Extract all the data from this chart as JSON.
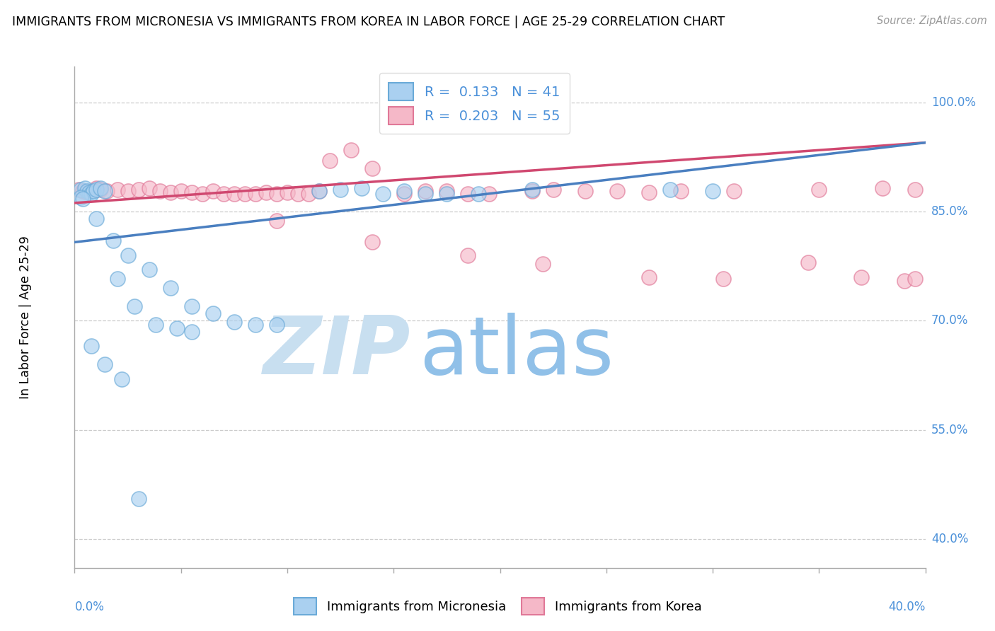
{
  "title": "IMMIGRANTS FROM MICRONESIA VS IMMIGRANTS FROM KOREA IN LABOR FORCE | AGE 25-29 CORRELATION CHART",
  "source": "Source: ZipAtlas.com",
  "ylabel": "In Labor Force | Age 25-29",
  "ytick_labels": [
    "40.0%",
    "55.0%",
    "70.0%",
    "85.0%",
    "100.0%"
  ],
  "ytick_values": [
    0.4,
    0.55,
    0.7,
    0.85,
    1.0
  ],
  "xtick_left": "0.0%",
  "xtick_right": "40.0%",
  "xmin": 0.0,
  "xmax": 0.4,
  "ymin": 0.36,
  "ymax": 1.05,
  "legend_blue_r": "0.133",
  "legend_blue_n": "41",
  "legend_pink_r": "0.203",
  "legend_pink_n": "55",
  "blue_face": "#AAD0F0",
  "blue_edge": "#6AAAD8",
  "pink_face": "#F5B8C8",
  "pink_edge": "#E07898",
  "blue_line": "#4A7FC0",
  "pink_line": "#D04870",
  "watermark_zip": "ZIP",
  "watermark_atlas": "atlas",
  "watermark_color_zip": "#C8DFF0",
  "watermark_color_atlas": "#90C0E8",
  "blue_x": [
    0.003,
    0.005,
    0.006,
    0.007,
    0.008,
    0.009,
    0.01,
    0.012,
    0.014,
    0.003,
    0.004,
    0.115,
    0.125,
    0.135,
    0.145,
    0.155,
    0.165,
    0.175,
    0.19,
    0.01,
    0.018,
    0.025,
    0.035,
    0.045,
    0.055,
    0.065,
    0.075,
    0.085,
    0.095,
    0.02,
    0.028,
    0.038,
    0.048,
    0.055,
    0.215,
    0.28,
    0.3,
    0.008,
    0.014,
    0.022,
    0.03
  ],
  "blue_y": [
    0.88,
    0.882,
    0.878,
    0.876,
    0.875,
    0.878,
    0.88,
    0.882,
    0.878,
    0.87,
    0.868,
    0.878,
    0.88,
    0.882,
    0.875,
    0.878,
    0.875,
    0.875,
    0.875,
    0.84,
    0.81,
    0.79,
    0.77,
    0.745,
    0.72,
    0.71,
    0.698,
    0.695,
    0.695,
    0.758,
    0.72,
    0.695,
    0.69,
    0.685,
    0.88,
    0.88,
    0.878,
    0.665,
    0.64,
    0.62,
    0.455
  ],
  "pink_x": [
    0.002,
    0.004,
    0.006,
    0.008,
    0.01,
    0.012,
    0.015,
    0.02,
    0.025,
    0.03,
    0.035,
    0.04,
    0.045,
    0.05,
    0.055,
    0.06,
    0.065,
    0.07,
    0.075,
    0.08,
    0.085,
    0.09,
    0.095,
    0.1,
    0.105,
    0.11,
    0.115,
    0.12,
    0.13,
    0.14,
    0.155,
    0.165,
    0.175,
    0.185,
    0.195,
    0.215,
    0.225,
    0.24,
    0.255,
    0.27,
    0.285,
    0.31,
    0.35,
    0.38,
    0.395,
    0.095,
    0.14,
    0.185,
    0.22,
    0.27,
    0.305,
    0.345,
    0.37,
    0.39,
    0.395
  ],
  "pink_y": [
    0.88,
    0.878,
    0.876,
    0.878,
    0.882,
    0.88,
    0.878,
    0.88,
    0.878,
    0.88,
    0.882,
    0.878,
    0.876,
    0.878,
    0.876,
    0.875,
    0.878,
    0.875,
    0.875,
    0.875,
    0.875,
    0.876,
    0.875,
    0.876,
    0.875,
    0.875,
    0.878,
    0.92,
    0.935,
    0.91,
    0.875,
    0.878,
    0.878,
    0.875,
    0.875,
    0.878,
    0.88,
    0.878,
    0.878,
    0.876,
    0.878,
    0.878,
    0.88,
    0.882,
    0.88,
    0.838,
    0.808,
    0.79,
    0.778,
    0.76,
    0.758,
    0.78,
    0.76,
    0.755,
    0.758
  ],
  "blue_trend_x": [
    0.0,
    0.4
  ],
  "blue_trend_y": [
    0.808,
    0.945
  ],
  "pink_trend_x": [
    0.0,
    0.4
  ],
  "pink_trend_y": [
    0.862,
    0.945
  ]
}
